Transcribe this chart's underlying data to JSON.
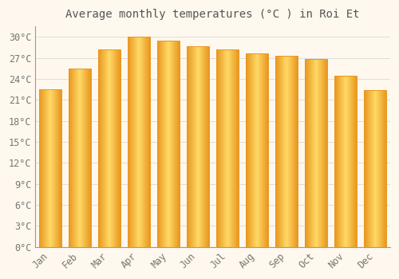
{
  "title": "Average monthly temperatures (°C ) in Roi Et",
  "months": [
    "Jan",
    "Feb",
    "Mar",
    "Apr",
    "May",
    "Jun",
    "Jul",
    "Aug",
    "Sep",
    "Oct",
    "Nov",
    "Dec"
  ],
  "values": [
    22.5,
    25.5,
    28.2,
    30.0,
    29.5,
    28.7,
    28.2,
    27.7,
    27.3,
    26.8,
    24.5,
    22.4
  ],
  "bar_color_center": "#FFD966",
  "bar_color_edge": "#E89820",
  "background_color": "#FFF8EE",
  "plot_bg_color": "#FFF8EE",
  "grid_color": "#DDDDDD",
  "text_color": "#777777",
  "title_color": "#555555",
  "ylim": [
    0,
    31.5
  ],
  "ytick_step": 3,
  "title_fontsize": 10,
  "tick_fontsize": 8.5,
  "bar_width": 0.75
}
